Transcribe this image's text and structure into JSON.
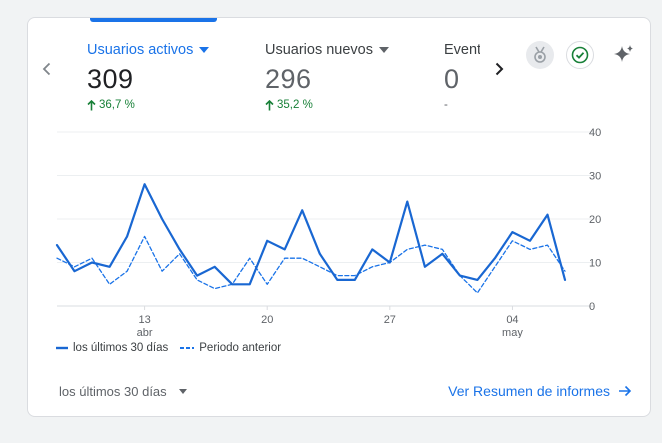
{
  "metrics": [
    {
      "label": "Usuarios activos",
      "value": "309",
      "change": "36,7 %",
      "trend": "up"
    },
    {
      "label": "Usuarios nuevos",
      "value": "296",
      "change": "35,2 %",
      "trend": "up"
    },
    {
      "label": "Event",
      "value": "0",
      "change": "-"
    }
  ],
  "legend": {
    "current": "los últimos 30 días",
    "previous": "Periodo anterior"
  },
  "footer": {
    "period_select": "los últimos 30 días",
    "report_link": "Ver Resumen de informes"
  },
  "colors": {
    "accent": "#1a73e8",
    "line_current": "#1967d2",
    "line_previous": "#1a73e8",
    "positive": "#188038"
  },
  "icons": {
    "prev": "chevron-left-icon",
    "next": "chevron-right-icon",
    "badge": "medal-badge-icon",
    "check": "check-circle-icon",
    "sparkle": "sparkle-icon"
  },
  "chart_data": {
    "type": "line",
    "x_tick_labels": [
      {
        "index": 5,
        "day": "13",
        "month": "abr"
      },
      {
        "index": 12,
        "day": "20",
        "month": ""
      },
      {
        "index": 19,
        "day": "27",
        "month": ""
      },
      {
        "index": 26,
        "day": "04",
        "month": "may"
      }
    ],
    "ylim": [
      0,
      40
    ],
    "yticks": [
      0,
      10,
      20,
      30,
      40
    ],
    "grid": true,
    "legend_position": "bottom-left",
    "series": [
      {
        "name": "los últimos 30 días",
        "style": "solid",
        "values": [
          14,
          8,
          10,
          9,
          16,
          28,
          20,
          13,
          7,
          9,
          5,
          5,
          15,
          13,
          22,
          12,
          6,
          6,
          13,
          10,
          24,
          9,
          12,
          7,
          6,
          11,
          17,
          15,
          21,
          6
        ]
      },
      {
        "name": "Periodo anterior",
        "style": "dashed",
        "values": [
          11,
          9,
          11,
          5,
          8,
          16,
          8,
          12,
          6,
          4,
          5,
          11,
          5,
          11,
          11,
          9,
          7,
          7,
          9,
          10,
          13,
          14,
          13,
          7,
          3,
          9,
          15,
          13,
          14,
          8
        ]
      }
    ]
  }
}
